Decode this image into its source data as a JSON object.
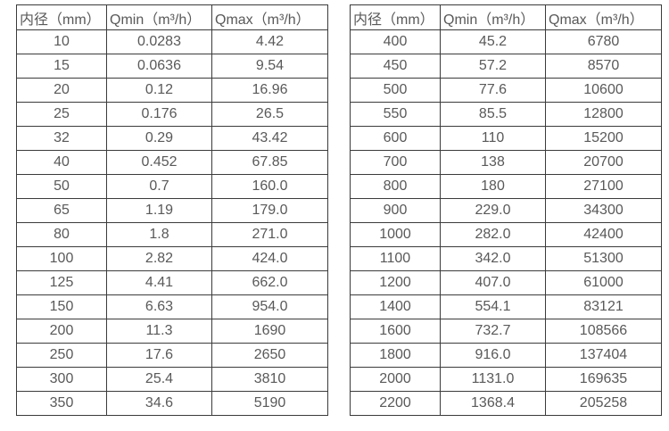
{
  "colors": {
    "background": "#ffffff",
    "border": "#3b3b3b",
    "text": "#595959"
  },
  "tables": [
    {
      "name": "small-diameters",
      "headers": [
        "内径（mm）",
        "Qmin（m³/h）",
        "Qmax（m³/h）"
      ],
      "rows": [
        [
          "10",
          "0.0283",
          "4.42"
        ],
        [
          "15",
          "0.0636",
          "9.54"
        ],
        [
          "20",
          "0.12",
          "16.96"
        ],
        [
          "25",
          "0.176",
          "26.5"
        ],
        [
          "32",
          "0.29",
          "43.42"
        ],
        [
          "40",
          "0.452",
          "67.85"
        ],
        [
          "50",
          "0.7",
          "160.0"
        ],
        [
          "65",
          "1.19",
          "179.0"
        ],
        [
          "80",
          "1.8",
          "271.0"
        ],
        [
          "100",
          "2.82",
          "424.0"
        ],
        [
          "125",
          "4.41",
          "662.0"
        ],
        [
          "150",
          "6.63",
          "954.0"
        ],
        [
          "200",
          "11.3",
          "1690"
        ],
        [
          "250",
          "17.6",
          "2650"
        ],
        [
          "300",
          "25.4",
          "3810"
        ],
        [
          "350",
          "34.6",
          "5190"
        ]
      ]
    },
    {
      "name": "large-diameters",
      "headers": [
        "内径（mm）",
        "Qmin（m³/h）",
        "Qmax（m³/h）"
      ],
      "rows": [
        [
          "400",
          "45.2",
          "6780"
        ],
        [
          "450",
          "57.2",
          "8570"
        ],
        [
          "500",
          "77.6",
          "10600"
        ],
        [
          "550",
          "85.5",
          "12800"
        ],
        [
          "600",
          "110",
          "15200"
        ],
        [
          "700",
          "138",
          "20700"
        ],
        [
          "800",
          "180",
          "27100"
        ],
        [
          "900",
          "229.0",
          "34300"
        ],
        [
          "1000",
          "282.0",
          "42400"
        ],
        [
          "1100",
          "342.0",
          "51300"
        ],
        [
          "1200",
          "407.0",
          "61000"
        ],
        [
          "1400",
          "554.1",
          "83121"
        ],
        [
          "1600",
          "732.7",
          "108566"
        ],
        [
          "1800",
          "916.0",
          "137404"
        ],
        [
          "2000",
          "1131.0",
          "169635"
        ],
        [
          "2200",
          "1368.4",
          "205258"
        ]
      ]
    }
  ]
}
